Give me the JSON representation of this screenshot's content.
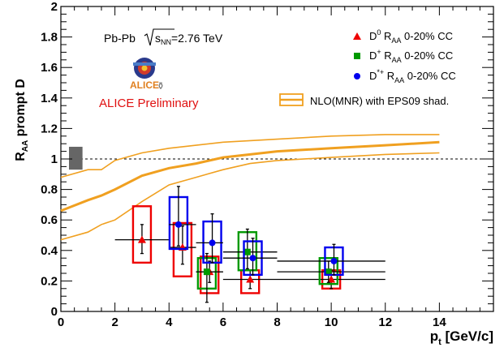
{
  "chart_data": {
    "type": "scatter",
    "title": "",
    "xlabel": "p_t [GeV/c]",
    "ylabel": "R_AA prompt D",
    "xlim": [
      0,
      16
    ],
    "ylim": [
      0,
      2
    ],
    "x_ticks": [
      "0",
      "2",
      "4",
      "6",
      "8",
      "10",
      "12",
      "14"
    ],
    "y_ticks": [
      "0",
      "0.2",
      "0.4",
      "0.6",
      "0.8",
      "1",
      "1.2",
      "1.4",
      "1.6",
      "1.8",
      "2"
    ],
    "reference_line": {
      "y": 1,
      "style": "dashed"
    },
    "normalization_box": {
      "x": [
        0.3,
        0.8
      ],
      "y": [
        0.93,
        1.08
      ],
      "color": "#666666"
    },
    "annotations": {
      "system": "Pb-Pb",
      "energy_sqrt": "s",
      "energy_sub": "NN",
      "energy_value": "=2.76 TeV",
      "preliminary": "ALICE Preliminary",
      "logo_text": "ALICE"
    },
    "legend": {
      "placement": "top-right",
      "entries": [
        {
          "key": "d0",
          "particle": "D",
          "sup": "0",
          "r": "R",
          "sub": "AA",
          "text": " 0-20% CC",
          "marker": "triangle",
          "color": "#ee0000"
        },
        {
          "key": "dplus",
          "particle": "D",
          "sup": "+",
          "r": "R",
          "sub": "AA",
          "text": " 0-20% CC",
          "marker": "square",
          "color": "#009900"
        },
        {
          "key": "dstar",
          "particle": "D",
          "sup": "*+",
          "r": "R",
          "sub": "AA",
          "text": " 0-20% CC",
          "marker": "circle",
          "color": "#0000ee"
        }
      ],
      "model": {
        "label": "NLO(MNR) with EPS09 shad.",
        "color": "#f0a020"
      }
    },
    "series": [
      {
        "name": "D0 RAA 0-20% CC",
        "marker": "triangle",
        "color": "#ee0000",
        "points": [
          {
            "x": 3,
            "y": 0.47,
            "xlo": 2,
            "xhi": 4,
            "ylo": 0.38,
            "yhi": 0.57,
            "sys": [
              0.32,
              0.69
            ]
          },
          {
            "x": 4.5,
            "y": 0.42,
            "xlo": 4,
            "xhi": 5,
            "ylo": 0.31,
            "yhi": 0.56,
            "sys": [
              0.23,
              0.58
            ]
          },
          {
            "x": 5.5,
            "y": 0.26,
            "xlo": 5,
            "xhi": 6,
            "ylo": 0.19,
            "yhi": 0.33,
            "sys": [
              0.12,
              0.36
            ]
          },
          {
            "x": 7,
            "y": 0.21,
            "xlo": 6,
            "xhi": 8,
            "ylo": 0.15,
            "yhi": 0.27,
            "sys": [
              0.12,
              0.27
            ]
          },
          {
            "x": 10,
            "y": 0.21,
            "xlo": 8,
            "xhi": 12,
            "ylo": 0.15,
            "yhi": 0.27,
            "sys": [
              0.15,
              0.27
            ]
          }
        ]
      },
      {
        "name": "D+ RAA 0-20% CC",
        "marker": "square",
        "color": "#009900",
        "points": [
          {
            "x": 5.4,
            "y": 0.26,
            "xlo": 5,
            "xhi": 6,
            "ylo": 0.06,
            "yhi": 0.38,
            "sys": [
              0.15,
              0.35
            ]
          },
          {
            "x": 6.9,
            "y": 0.39,
            "xlo": 6,
            "xhi": 8,
            "ylo": 0.28,
            "yhi": 0.54,
            "sys": [
              0.27,
              0.52
            ]
          },
          {
            "x": 9.9,
            "y": 0.26,
            "xlo": 8,
            "xhi": 12,
            "ylo": 0.19,
            "yhi": 0.33,
            "sys": [
              0.18,
              0.35
            ]
          }
        ]
      },
      {
        "name": "D*+ RAA 0-20% CC",
        "marker": "circle",
        "color": "#0000ee",
        "points": [
          {
            "x": 4.35,
            "y": 0.57,
            "xlo": 4,
            "xhi": 5,
            "ylo": 0.43,
            "yhi": 0.82,
            "sys": [
              0.41,
              0.75
            ]
          },
          {
            "x": 5.6,
            "y": 0.45,
            "xlo": 5,
            "xhi": 6,
            "ylo": 0.32,
            "yhi": 0.64,
            "sys": [
              0.32,
              0.59
            ]
          },
          {
            "x": 7.1,
            "y": 0.35,
            "xlo": 6,
            "xhi": 8,
            "ylo": 0.24,
            "yhi": 0.48,
            "sys": [
              0.24,
              0.46
            ]
          },
          {
            "x": 10.1,
            "y": 0.33,
            "xlo": 8,
            "xhi": 12,
            "ylo": 0.24,
            "yhi": 0.44,
            "sys": [
              0.24,
              0.42
            ]
          }
        ]
      }
    ],
    "model_band": {
      "name": "NLO(MNR) with EPS09 shad.",
      "color": "#f0a020",
      "x": [
        0,
        1,
        1.5,
        2,
        3,
        4,
        5,
        6,
        7,
        8,
        10,
        12,
        14
      ],
      "upper": [
        0.88,
        0.93,
        0.93,
        0.99,
        1.04,
        1.07,
        1.09,
        1.11,
        1.12,
        1.13,
        1.15,
        1.16,
        1.16
      ],
      "central": [
        0.66,
        0.73,
        0.76,
        0.8,
        0.89,
        0.94,
        0.97,
        1.01,
        1.03,
        1.05,
        1.07,
        1.09,
        1.11
      ],
      "lower": [
        0.47,
        0.52,
        0.57,
        0.6,
        0.72,
        0.83,
        0.88,
        0.93,
        0.97,
        0.99,
        1.01,
        1.03,
        1.04
      ]
    }
  }
}
